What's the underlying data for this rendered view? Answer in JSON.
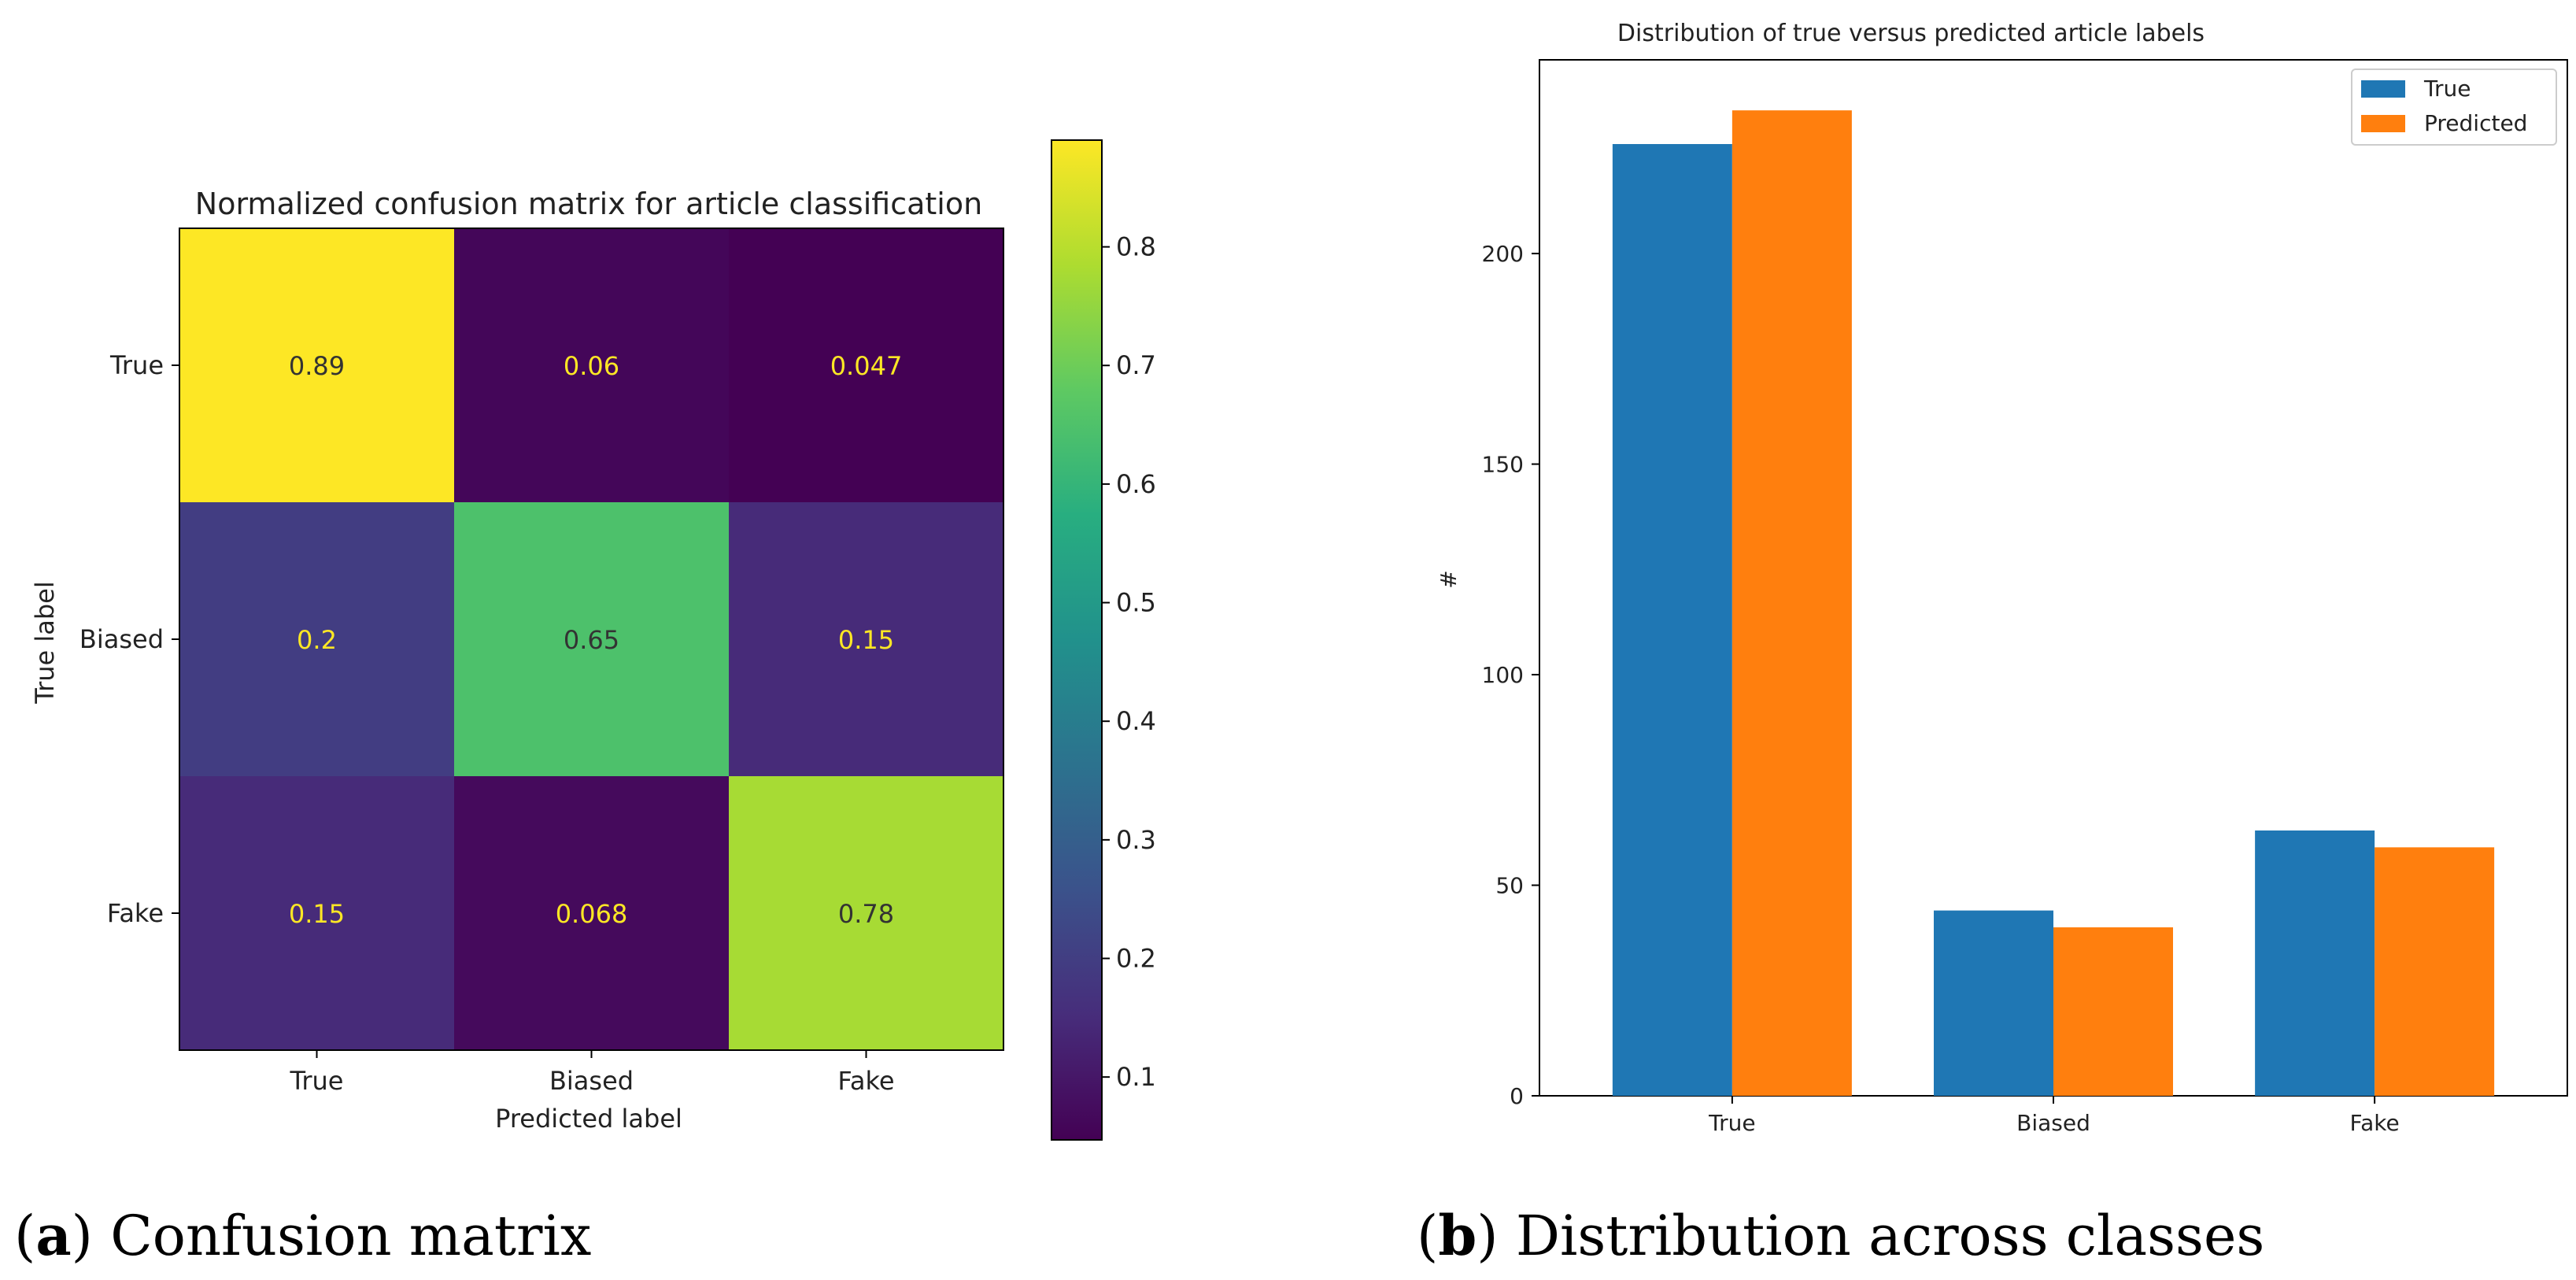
{
  "chart_data": [
    {
      "type": "heatmap",
      "title": "Normalized confusion matrix for article classification",
      "xlabel": "Predicted label",
      "ylabel": "True label",
      "row_labels": [
        "True",
        "Biased",
        "Fake"
      ],
      "col_labels": [
        "True",
        "Biased",
        "Fake"
      ],
      "values": [
        [
          0.89,
          0.06,
          0.047
        ],
        [
          0.2,
          0.65,
          0.15
        ],
        [
          0.15,
          0.068,
          0.78
        ]
      ],
      "value_labels": [
        [
          "0.89",
          "0.06",
          "0.047"
        ],
        [
          "0.2",
          "0.65",
          "0.15"
        ],
        [
          "0.15",
          "0.068",
          "0.78"
        ]
      ],
      "colormap": "viridis",
      "colorbar_range": [
        0.047,
        0.89
      ],
      "colorbar_ticks": [
        0.1,
        0.2,
        0.3,
        0.4,
        0.5,
        0.6,
        0.7,
        0.8
      ],
      "colorbar_tick_labels": [
        "0.1",
        "0.2",
        "0.3",
        "0.4",
        "0.5",
        "0.6",
        "0.7",
        "0.8"
      ],
      "caption_letter": "a",
      "caption_text": "Confusion matrix"
    },
    {
      "type": "bar",
      "title": "Distribution of true versus predicted article labels",
      "xlabel": "",
      "ylabel": "#",
      "categories": [
        "True",
        "Biased",
        "Fake"
      ],
      "series": [
        {
          "name": "True",
          "values": [
            226,
            44,
            63
          ],
          "color": "#1f77b4"
        },
        {
          "name": "Predicted",
          "values": [
            234,
            40,
            59
          ],
          "color": "#ff7f0e"
        }
      ],
      "ylim": [
        0,
        246
      ],
      "yticks": [
        0,
        50,
        100,
        150,
        200
      ],
      "ytick_labels": [
        "0",
        "50",
        "100",
        "150",
        "200"
      ],
      "legend": "top-right",
      "caption_letter": "b",
      "caption_text": "Distribution across classes"
    }
  ]
}
